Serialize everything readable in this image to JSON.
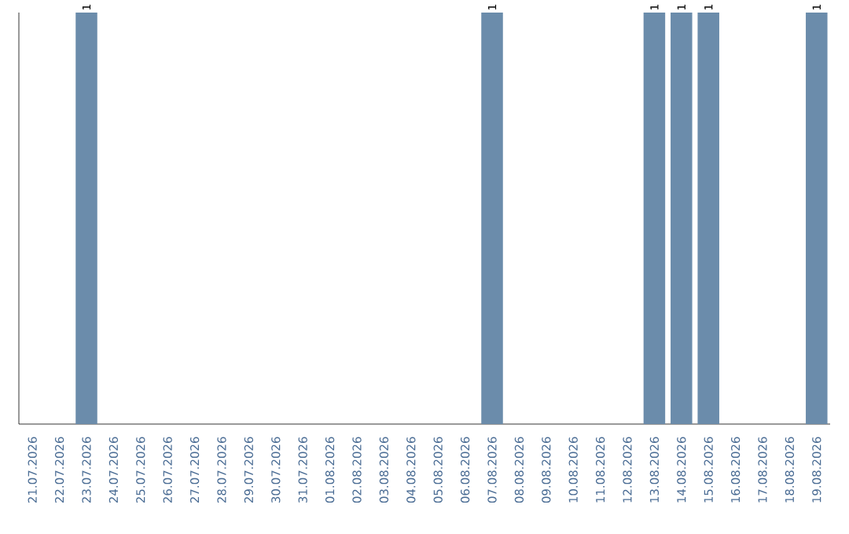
{
  "chart_data": {
    "type": "bar",
    "categories": [
      "21.07.2026",
      "22.07.2026",
      "23.07.2026",
      "24.07.2026",
      "25.07.2026",
      "26.07.2026",
      "27.07.2026",
      "28.07.2026",
      "29.07.2026",
      "30.07.2026",
      "31.07.2026",
      "01.08.2026",
      "02.08.2026",
      "03.08.2026",
      "04.08.2026",
      "05.08.2026",
      "06.08.2026",
      "07.08.2026",
      "08.08.2026",
      "09.08.2026",
      "10.08.2026",
      "11.08.2026",
      "12.08.2026",
      "13.08.2026",
      "14.08.2026",
      "15.08.2026",
      "16.08.2026",
      "17.08.2026",
      "18.08.2026",
      "19.08.2026"
    ],
    "values": [
      0,
      0,
      1,
      0,
      0,
      0,
      0,
      0,
      0,
      0,
      0,
      0,
      0,
      0,
      0,
      0,
      0,
      1,
      0,
      0,
      0,
      0,
      0,
      1,
      1,
      1,
      0,
      0,
      0,
      1
    ],
    "value_labels": [
      null,
      null,
      "1",
      null,
      null,
      null,
      null,
      null,
      null,
      null,
      null,
      null,
      null,
      null,
      null,
      null,
      null,
      "1",
      null,
      null,
      null,
      null,
      null,
      "1",
      "1",
      "1",
      null,
      null,
      null,
      "1"
    ],
    "color": "#6b8cab",
    "ylim": [
      0,
      1
    ],
    "tick_labels": "x"
  }
}
